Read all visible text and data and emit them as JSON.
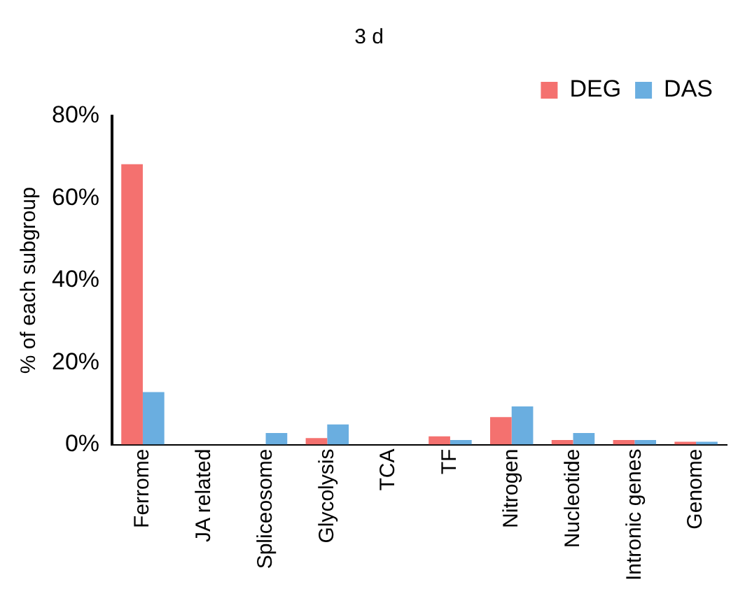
{
  "chart_data": {
    "type": "bar",
    "title": "3 d",
    "ylabel": "% of each subgroup",
    "categories": [
      "Ferrome",
      "JA related",
      "Spliceosome",
      "Glycolysis",
      "TCA",
      "TF",
      "Nitrogen",
      "Nucleotide",
      "Intronic genes",
      "Genome"
    ],
    "series": [
      {
        "name": "DEG",
        "color": "#f4716f",
        "values": [
          68.3,
          0,
          0,
          1.6,
          0,
          2,
          6.7,
          1.1,
          1.1,
          0.7
        ]
      },
      {
        "name": "DAS",
        "color": "#6aaee0",
        "values": [
          12.8,
          0,
          2.8,
          4.9,
          0,
          1.1,
          9.3,
          2.8,
          1.1,
          0.7
        ]
      }
    ],
    "ylim": [
      0,
      80
    ],
    "yticks": [
      {
        "value": 0,
        "label": "0%"
      },
      {
        "value": 20,
        "label": "20%"
      },
      {
        "value": 40,
        "label": "40%"
      },
      {
        "value": 60,
        "label": "60%"
      },
      {
        "value": 80,
        "label": "80%"
      }
    ],
    "grid": false,
    "legend": "top right"
  }
}
